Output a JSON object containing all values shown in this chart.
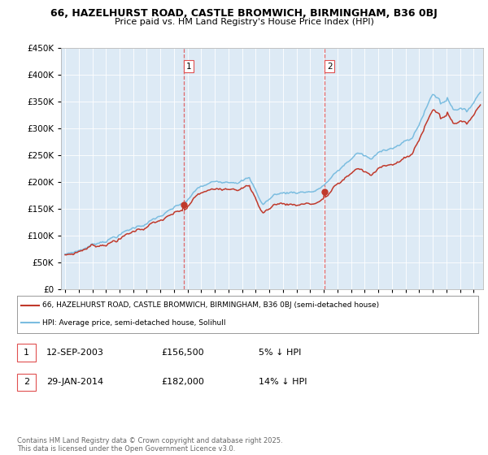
{
  "title_line1": "66, HAZELHURST ROAD, CASTLE BROMWICH, BIRMINGHAM, B36 0BJ",
  "title_line2": "Price paid vs. HM Land Registry's House Price Index (HPI)",
  "legend_line1": "66, HAZELHURST ROAD, CASTLE BROMWICH, BIRMINGHAM, B36 0BJ (semi-detached house)",
  "legend_line2": "HPI: Average price, semi-detached house, Solihull",
  "transaction1_label": "1",
  "transaction1_date": "12-SEP-2003",
  "transaction1_price": "£156,500",
  "transaction1_pct": "5% ↓ HPI",
  "transaction2_label": "2",
  "transaction2_date": "29-JAN-2014",
  "transaction2_price": "£182,000",
  "transaction2_pct": "14% ↓ HPI",
  "footer": "Contains HM Land Registry data © Crown copyright and database right 2025.\nThis data is licensed under the Open Government Licence v3.0.",
  "hpi_color": "#7bbde0",
  "price_color": "#c0392b",
  "marker_color": "#c0392b",
  "vline_color": "#e05050",
  "background_color": "#ffffff",
  "plot_bg_color": "#ddeaf5",
  "ylim_min": 0,
  "ylim_max": 450000,
  "ytick_step": 50000,
  "t1_year": 2003.71,
  "t2_year": 2014.08,
  "t1_price": 156500,
  "t2_price": 182000
}
